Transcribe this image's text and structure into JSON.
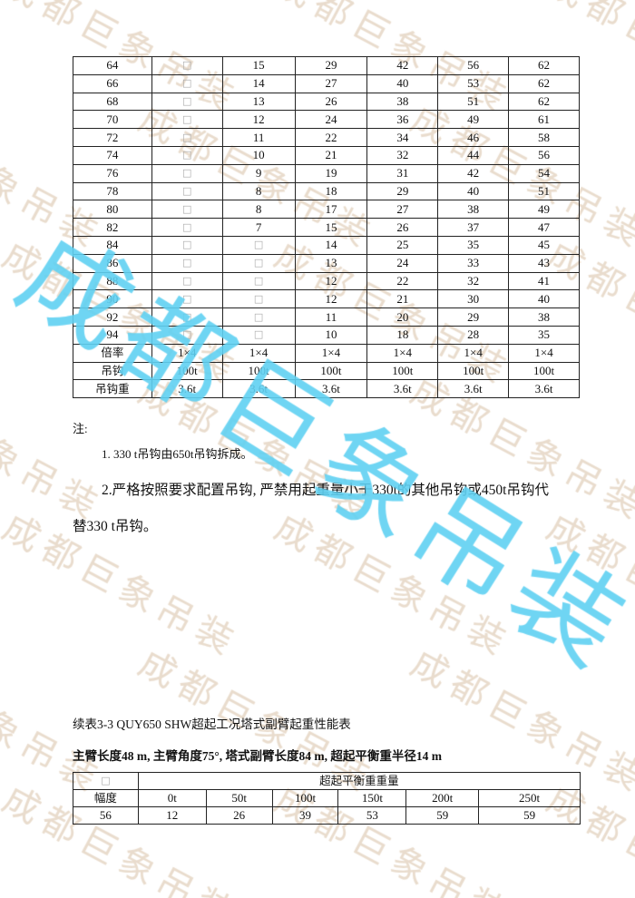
{
  "watermark": {
    "text": "成都巨象吊装",
    "bg_color": "#e9dccd",
    "overlay_color": "#5fd0f2"
  },
  "table1": {
    "placeholder": "□",
    "rows": [
      [
        "64",
        "□",
        "15",
        "29",
        "42",
        "56",
        "62"
      ],
      [
        "66",
        "□",
        "14",
        "27",
        "40",
        "53",
        "62"
      ],
      [
        "68",
        "□",
        "13",
        "26",
        "38",
        "51",
        "62"
      ],
      [
        "70",
        "□",
        "12",
        "24",
        "36",
        "49",
        "61"
      ],
      [
        "72",
        "□",
        "11",
        "22",
        "34",
        "46",
        "58"
      ],
      [
        "74",
        "□",
        "10",
        "21",
        "32",
        "44",
        "56"
      ],
      [
        "76",
        "□",
        "9",
        "19",
        "31",
        "42",
        "54"
      ],
      [
        "78",
        "□",
        "8",
        "18",
        "29",
        "40",
        "51"
      ],
      [
        "80",
        "□",
        "8",
        "17",
        "27",
        "38",
        "49"
      ],
      [
        "82",
        "□",
        "7",
        "15",
        "26",
        "37",
        "47"
      ],
      [
        "84",
        "□",
        "□",
        "14",
        "25",
        "35",
        "45"
      ],
      [
        "86",
        "□",
        "□",
        "13",
        "24",
        "33",
        "43"
      ],
      [
        "88",
        "□",
        "□",
        "12",
        "22",
        "32",
        "41"
      ],
      [
        "90",
        "□",
        "□",
        "12",
        "21",
        "30",
        "40"
      ],
      [
        "92",
        "□",
        "□",
        "11",
        "20",
        "29",
        "38"
      ],
      [
        "94",
        "□",
        "□",
        "10",
        "18",
        "28",
        "35"
      ],
      [
        "倍率",
        "1×4",
        "1×4",
        "1×4",
        "1×4",
        "1×4",
        "1×4"
      ],
      [
        "吊钩",
        "100t",
        "100t",
        "100t",
        "100t",
        "100t",
        "100t"
      ],
      [
        "吊钩重",
        "3.6t",
        "3.6t",
        "3.6t",
        "3.6t",
        "3.6t",
        "3.6t"
      ]
    ]
  },
  "notes": {
    "heading": "注:",
    "note1": "1. 330 t吊钩由650t吊钩拆成。",
    "note2_line1": "2.严格按照要求配置吊钩, 严禁用起重量小于330t的其他吊钩或450t吊钩代",
    "note2_line2": "替330 t吊钩。"
  },
  "table2": {
    "caption": "续表3-3 QUY650 SHW超起工况塔式副臂起重性能表",
    "subtitle": "主臂长度48 m, 主臂角度75°, 塔式副臂长度84 m, 超起平衡重半径14 m",
    "corner": "□",
    "group_header": "超起平衡重重量",
    "row_header": "幅度",
    "columns": [
      "0t",
      "50t",
      "100t",
      "150t",
      "200t",
      "250t"
    ],
    "rows": [
      [
        "56",
        "12",
        "26",
        "39",
        "53",
        "59",
        "59"
      ]
    ]
  }
}
